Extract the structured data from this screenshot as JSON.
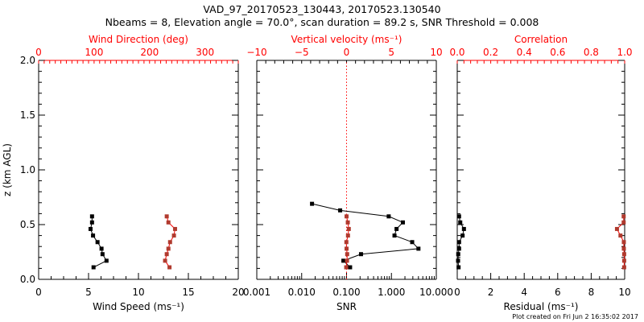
{
  "title": "VAD_97_20170523_130443, 20170523.130540",
  "subtitle": "Nbeams = 8, Elevation angle = 70.0°, scan duration = 89.2 s, SNR Threshold = 0.008",
  "footer": "Plot created on Fri Jun  2 16:35:02 2017",
  "colors": {
    "primary": "#000000",
    "secondary": "#ff0000",
    "secondary_marker": "#b03a2e"
  },
  "chart_data": [
    {
      "type": "line",
      "ylabel": "z (km AGL)",
      "ylim": [
        0,
        2.0
      ],
      "yticks": [
        "0.0",
        "0.5",
        "1.0",
        "1.5",
        "2.0"
      ],
      "xlabel": "Wind Speed (ms⁻¹)",
      "xlim": [
        0,
        20
      ],
      "xticks": [
        "0",
        "5",
        "10",
        "15",
        "20"
      ],
      "x2label": "Wind Direction (deg)",
      "x2lim": [
        0,
        360
      ],
      "x2ticks": [
        "0",
        "100",
        "200",
        "300"
      ],
      "x2tickvals": [
        0,
        100,
        200,
        300
      ],
      "series": [
        {
          "name": "Wind Speed",
          "axis": "bottom",
          "z": [
            0.575,
            0.52,
            0.46,
            0.4,
            0.34,
            0.28,
            0.23,
            0.17,
            0.11
          ],
          "x": [
            5.35,
            5.35,
            5.2,
            5.45,
            5.9,
            6.3,
            6.4,
            6.8,
            5.5
          ]
        },
        {
          "name": "Wind Direction",
          "axis": "top",
          "z": [
            0.575,
            0.52,
            0.46,
            0.4,
            0.34,
            0.28,
            0.23,
            0.17,
            0.11
          ],
          "x": [
            231,
            234,
            246,
            244,
            237,
            234,
            231,
            228,
            236
          ]
        }
      ]
    },
    {
      "type": "line",
      "xlabel": "SNR",
      "xscale": "log",
      "xlim": [
        0.001,
        10
      ],
      "xticks": [
        "0.001",
        "0.010",
        "0.100",
        "1.000",
        "10.000"
      ],
      "x2label": "Vertical velocity (ms⁻¹)",
      "x2lim": [
        -10,
        10
      ],
      "x2ticks": [
        "−10",
        "−5",
        "0",
        "5",
        "10"
      ],
      "x2tickvals": [
        -10,
        -5,
        0,
        5,
        10
      ],
      "ylim": [
        0,
        2.0
      ],
      "series": [
        {
          "name": "SNR",
          "axis": "bottom",
          "z": [
            0.69,
            0.63,
            0.575,
            0.52,
            0.46,
            0.4,
            0.34,
            0.28,
            0.23,
            0.17,
            0.11
          ],
          "x": [
            0.017,
            0.072,
            0.87,
            1.8,
            1.3,
            1.17,
            2.9,
            4.0,
            0.21,
            0.085,
            0.12
          ]
        },
        {
          "name": "Vertical velocity",
          "axis": "top",
          "z": [
            0.575,
            0.52,
            0.46,
            0.4,
            0.34,
            0.28,
            0.23,
            0.17,
            0.11
          ],
          "x": [
            0.0,
            0.14,
            0.25,
            0.16,
            -0.02,
            0.0,
            0.07,
            0.05,
            -0.04
          ]
        }
      ],
      "reference_line": {
        "axis": "top",
        "x": 0,
        "style": "dotted"
      }
    },
    {
      "type": "line",
      "xlabel": "Residual (ms⁻¹)",
      "xlim": [
        0,
        10
      ],
      "xticks": [
        "0",
        "2",
        "4",
        "6",
        "8",
        "10"
      ],
      "x2label": "Correlation",
      "x2lim": [
        0,
        1
      ],
      "x2ticks": [
        "0.0",
        "0.2",
        "0.4",
        "0.6",
        "0.8",
        "1.0"
      ],
      "x2tickvals": [
        0,
        0.2,
        0.4,
        0.6,
        0.8,
        1.0
      ],
      "ylim": [
        0,
        2.0
      ],
      "series": [
        {
          "name": "Residual",
          "axis": "bottom",
          "z": [
            0.575,
            0.52,
            0.46,
            0.4,
            0.34,
            0.28,
            0.23,
            0.17,
            0.11
          ],
          "x": [
            0.11,
            0.18,
            0.4,
            0.32,
            0.11,
            0.11,
            0.06,
            0.05,
            0.08
          ]
        },
        {
          "name": "Correlation",
          "axis": "top",
          "z": [
            0.575,
            0.52,
            0.46,
            0.4,
            0.34,
            0.28,
            0.23,
            0.17,
            0.11
          ],
          "x": [
            0.994,
            0.994,
            0.954,
            0.975,
            0.995,
            0.995,
            0.997,
            0.997,
            0.997
          ]
        }
      ]
    }
  ]
}
